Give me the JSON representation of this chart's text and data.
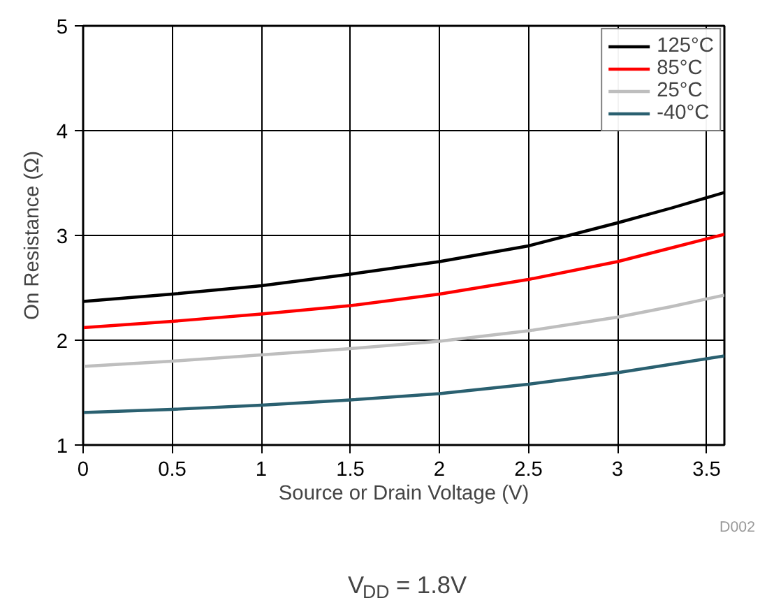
{
  "chart_data": {
    "type": "line",
    "xlabel": "Source or Drain Voltage (V)",
    "ylabel": "On Resistance (Ω)",
    "x": [
      0,
      0.5,
      1,
      1.5,
      2,
      2.5,
      3,
      3.3,
      3.6
    ],
    "series": [
      {
        "name": "125°C",
        "color": "#000000",
        "values": [
          2.37,
          2.44,
          2.52,
          2.63,
          2.75,
          2.9,
          3.12,
          3.26,
          3.41
        ]
      },
      {
        "name": "85°C",
        "color": "#ff0000",
        "values": [
          2.12,
          2.18,
          2.25,
          2.33,
          2.44,
          2.58,
          2.75,
          2.88,
          3.01
        ]
      },
      {
        "name": "25°C",
        "color": "#bebebe",
        "values": [
          1.75,
          1.8,
          1.86,
          1.92,
          1.99,
          2.09,
          2.22,
          2.32,
          2.43
        ]
      },
      {
        "name": "-40°C",
        "color": "#2a6070",
        "values": [
          1.31,
          1.34,
          1.38,
          1.43,
          1.49,
          1.58,
          1.69,
          1.77,
          1.85
        ]
      }
    ],
    "xlim": [
      0,
      3.6
    ],
    "xticks": [
      0,
      0.5,
      1,
      1.5,
      2,
      2.5,
      3,
      3.5
    ],
    "ylim": [
      1,
      5
    ],
    "yticks": [
      1,
      2,
      3,
      4,
      5
    ],
    "grid": true,
    "legend": "top right",
    "marker": "none",
    "line_style": "solid",
    "annotations": [
      "D002",
      "V$_{DD}$ = 1.8V"
    ]
  }
}
